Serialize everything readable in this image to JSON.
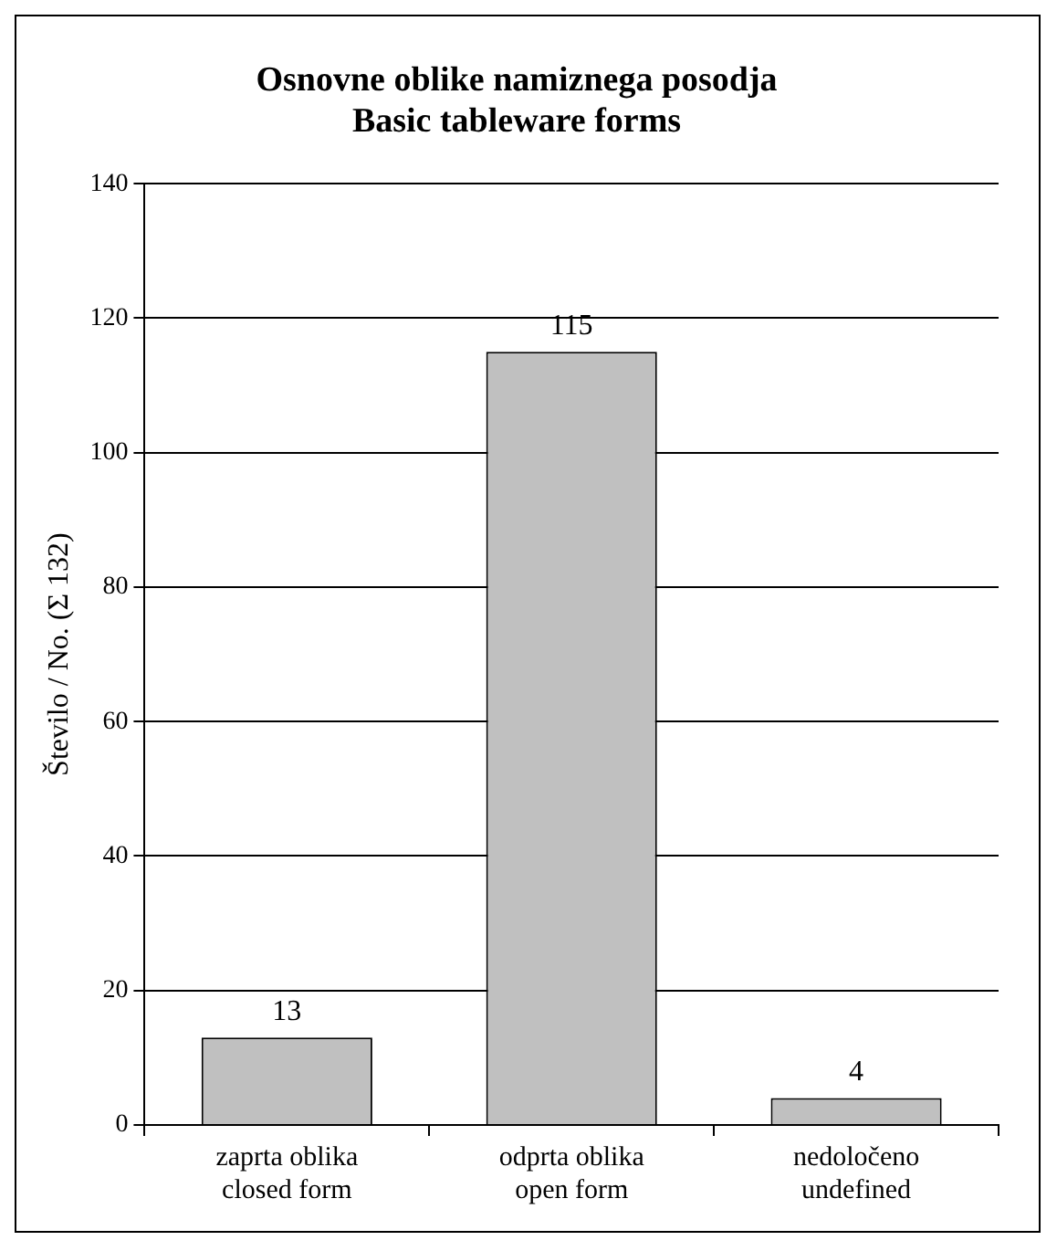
{
  "chart_data": {
    "type": "bar",
    "title": "Osnovne oblike namiznega posodja\nBasic tableware forms",
    "ylabel": "Število / No. (Σ 132)",
    "categories": [
      "zaprta oblika\nclosed form",
      "odprta oblika\nopen form",
      "nedoločeno\nundefined"
    ],
    "values": [
      13,
      115,
      4
    ],
    "color": "#c0c0c0",
    "ylim": [
      0,
      140
    ],
    "yticks": [
      0,
      20,
      40,
      60,
      80,
      100,
      120,
      140
    ],
    "grid": "y",
    "data_labels": true
  }
}
